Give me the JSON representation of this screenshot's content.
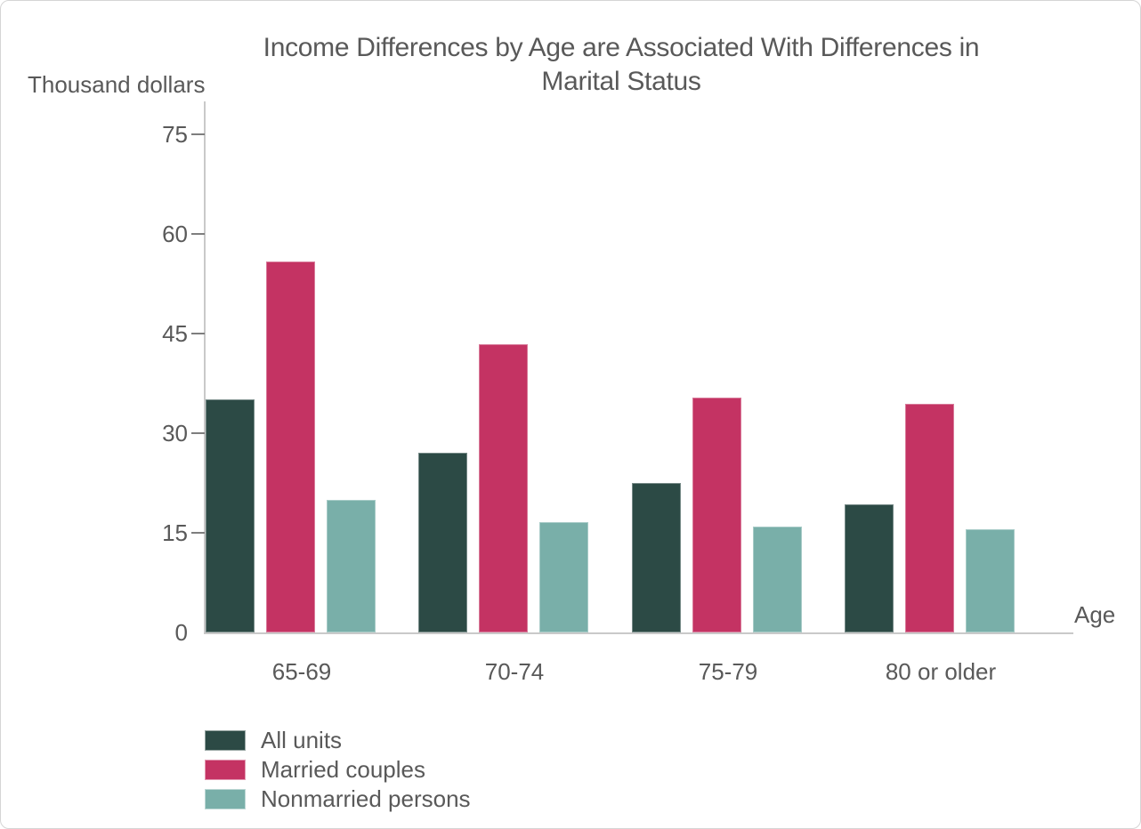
{
  "title_lines": [
    "Income Differences by Age are Associated With Differences in",
    "Marital Status"
  ],
  "colors": {
    "all_units": "#2C4A45",
    "married_couples": "#C43363",
    "nonmarried_persons": "#79AFA9",
    "text": "#595959",
    "axis_line": "#C9C9C9",
    "tick_mark": "#7E7E7E",
    "frame_border": "#D5D5D5",
    "background": "#FFFFFF"
  },
  "chart_data": {
    "type": "bar",
    "title": "Income Differences by Age are Associated With Differences in Marital Status",
    "xlabel": "Age",
    "ylabel": "Thousand dollars",
    "categories": [
      "65-69",
      "70-74",
      "75-79",
      "80 or older"
    ],
    "series": [
      {
        "name": "All units",
        "color": "#2C4A45",
        "values": [
          35.1,
          27.0,
          22.5,
          19.3
        ]
      },
      {
        "name": "Married couples",
        "color": "#C43363",
        "values": [
          55.9,
          43.4,
          35.4,
          34.4
        ]
      },
      {
        "name": "Nonmarried persons",
        "color": "#79AFA9",
        "values": [
          20.0,
          16.6,
          15.9,
          15.5
        ]
      }
    ],
    "yticks": [
      0,
      15,
      30,
      45,
      60,
      75
    ],
    "ylim": [
      0,
      80
    ],
    "grid": false,
    "legend_position": "bottom-left"
  }
}
